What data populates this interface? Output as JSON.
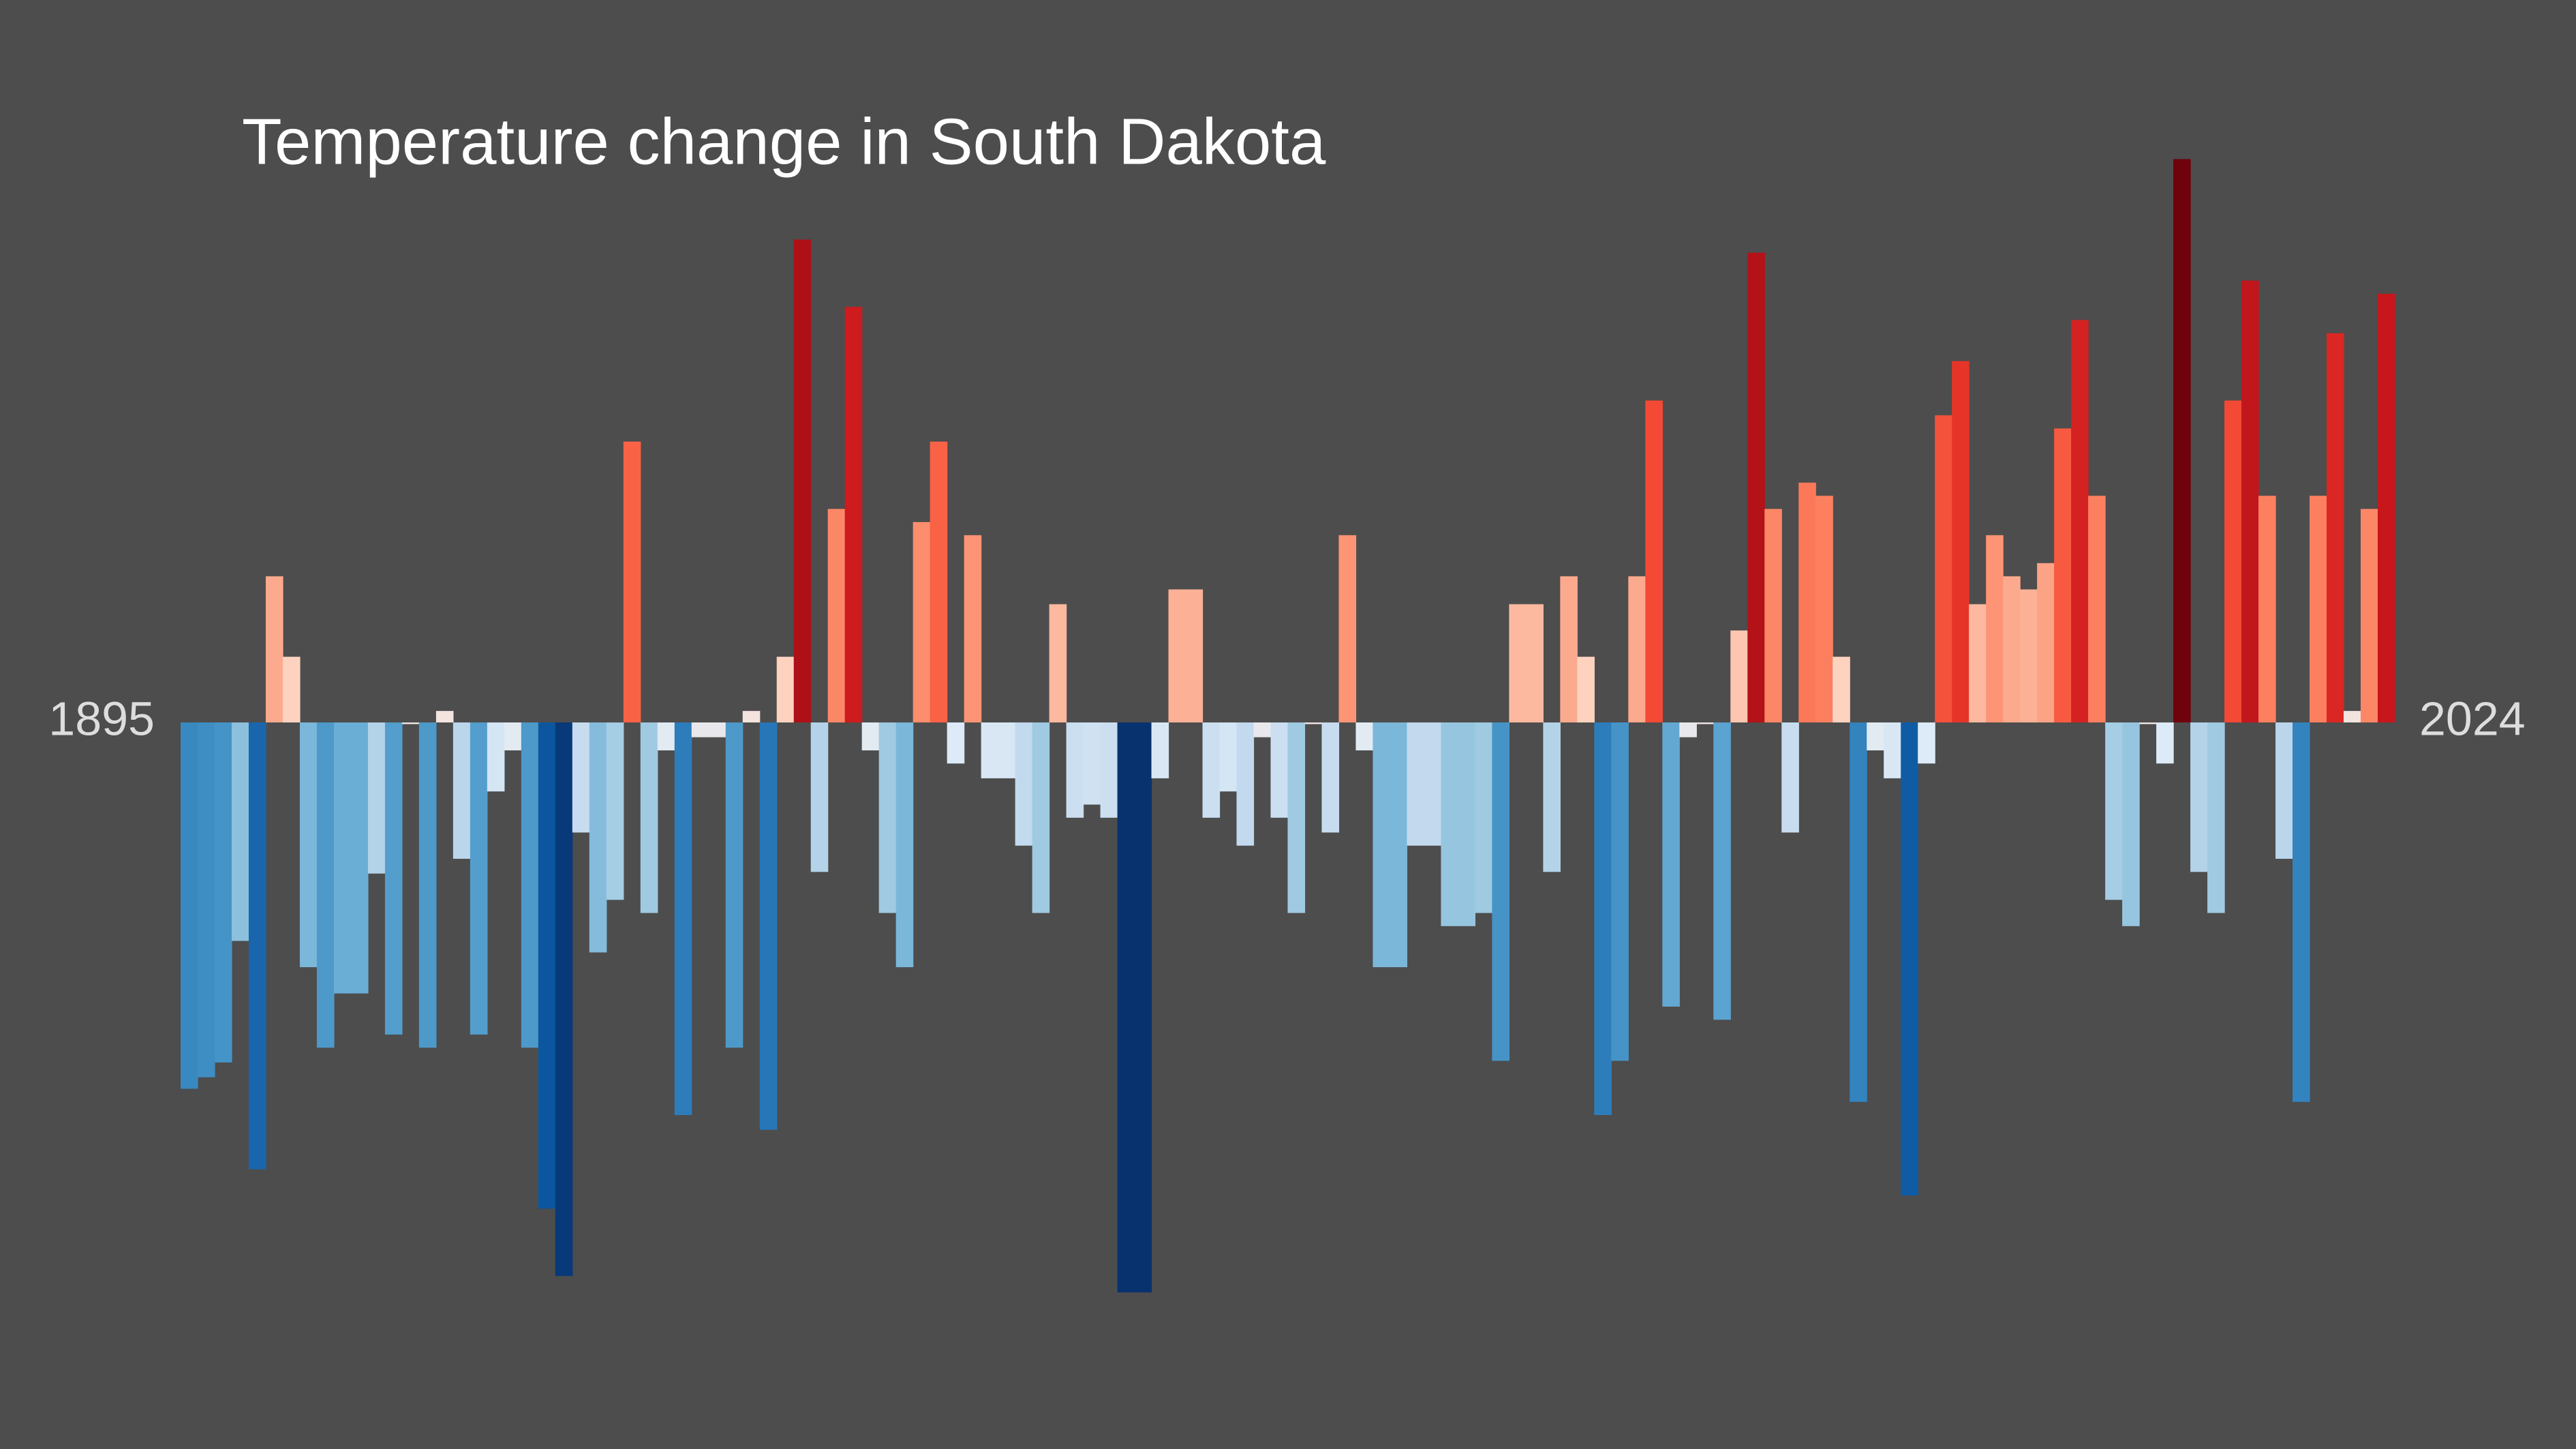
{
  "chart_data": {
    "type": "bar",
    "title": "Temperature change in South Dakota",
    "x": [
      1895,
      1896,
      1897,
      1898,
      1899,
      1900,
      1901,
      1902,
      1903,
      1904,
      1905,
      1906,
      1907,
      1908,
      1909,
      1910,
      1911,
      1912,
      1913,
      1914,
      1915,
      1916,
      1917,
      1918,
      1919,
      1920,
      1921,
      1922,
      1923,
      1924,
      1925,
      1926,
      1927,
      1928,
      1929,
      1930,
      1931,
      1932,
      1933,
      1934,
      1935,
      1936,
      1937,
      1938,
      1939,
      1940,
      1941,
      1942,
      1943,
      1944,
      1945,
      1946,
      1947,
      1948,
      1949,
      1950,
      1951,
      1952,
      1953,
      1954,
      1955,
      1956,
      1957,
      1958,
      1959,
      1960,
      1961,
      1962,
      1963,
      1964,
      1965,
      1966,
      1967,
      1968,
      1969,
      1970,
      1971,
      1972,
      1973,
      1974,
      1975,
      1976,
      1977,
      1978,
      1979,
      1980,
      1981,
      1982,
      1983,
      1984,
      1985,
      1986,
      1987,
      1988,
      1989,
      1990,
      1991,
      1992,
      1993,
      1994,
      1995,
      1996,
      1997,
      1998,
      1999,
      2000,
      2001,
      2002,
      2003,
      2004,
      2005,
      2006,
      2007,
      2008,
      2009,
      2010,
      2011,
      2012,
      2013,
      2014,
      2015,
      2016,
      2017,
      2018,
      2019,
      2020,
      2021,
      2022,
      2023,
      2024
    ],
    "values": [
      -2.23,
      -2.16,
      -2.07,
      -1.33,
      -2.72,
      0.89,
      0.4,
      -1.49,
      -1.98,
      -1.65,
      -1.65,
      -0.92,
      -1.9,
      -0.01,
      -1.98,
      0.07,
      -0.83,
      -1.9,
      -0.42,
      -0.17,
      -1.98,
      -2.96,
      -3.37,
      -0.67,
      -1.4,
      -1.08,
      1.71,
      -1.16,
      -0.17,
      -2.39,
      -0.09,
      -0.09,
      -1.98,
      0.07,
      -2.48,
      0.4,
      2.94,
      -0.91,
      1.3,
      2.53,
      -0.17,
      -1.16,
      -1.49,
      1.22,
      1.71,
      -0.25,
      1.14,
      -0.34,
      -0.34,
      -0.75,
      -1.16,
      0.72,
      -0.58,
      -0.5,
      -0.58,
      -3.47,
      -3.47,
      -0.34,
      0.81,
      0.81,
      -0.58,
      -0.42,
      -0.75,
      -0.09,
      -0.58,
      -1.16,
      -0.01,
      -0.67,
      1.14,
      -0.17,
      -1.49,
      -1.49,
      -0.75,
      -0.75,
      -1.24,
      -1.24,
      -1.16,
      -2.06,
      0.72,
      0.72,
      -0.91,
      0.89,
      0.4,
      -2.39,
      -2.06,
      0.89,
      1.96,
      -1.73,
      -0.09,
      -0.01,
      -1.81,
      0.56,
      2.86,
      1.3,
      -0.67,
      1.46,
      1.38,
      0.4,
      -2.31,
      -0.17,
      -0.34,
      -2.88,
      -0.25,
      1.87,
      2.2,
      0.72,
      1.14,
      0.89,
      0.81,
      0.97,
      1.79,
      2.45,
      1.38,
      -1.08,
      -1.24,
      -0.01,
      -0.25,
      3.43,
      -0.91,
      -1.16,
      1.96,
      2.69,
      1.38,
      -0.83,
      -2.31,
      1.38,
      2.37,
      0.07,
      1.3,
      2.61
    ],
    "xlim": [
      1894.5,
      2024.5
    ],
    "ylim": [
      -4,
      4
    ],
    "color_range": [
      -3.5,
      3.5
    ],
    "colormap": [
      "#08306b",
      "#08519c",
      "#2171b5",
      "#4292c6",
      "#6baed6",
      "#9ecae1",
      "#c6dbef",
      "#deebf7",
      "#fee0d2",
      "#fcbba1",
      "#fc9272",
      "#fb6a4a",
      "#ef3b2c",
      "#cb181d",
      "#a50f15",
      "#67000d"
    ],
    "background": "#4d4d4d"
  }
}
